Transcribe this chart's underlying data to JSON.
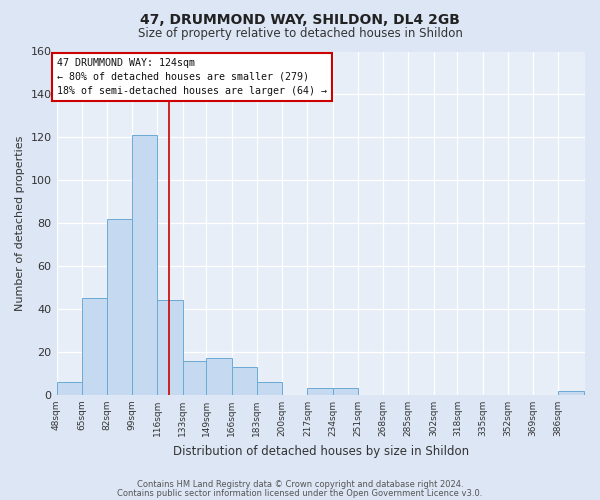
{
  "title": "47, DRUMMOND WAY, SHILDON, DL4 2GB",
  "subtitle": "Size of property relative to detached houses in Shildon",
  "xlabel": "Distribution of detached houses by size in Shildon",
  "ylabel": "Number of detached properties",
  "bar_color": "#c5d9f0",
  "bar_edge_color": "#6aaad4",
  "background_color": "#dce6f4",
  "plot_bg_color": "#e8eef8",
  "grid_color": "#ffffff",
  "annotation_box_color": "#ffffff",
  "annotation_box_edge": "#cc0000",
  "vline_color": "#cc0000",
  "vline_x": 124,
  "annotation_line1": "47 DRUMMOND WAY: 124sqm",
  "annotation_line2": "← 80% of detached houses are smaller (279)",
  "annotation_line3": "18% of semi-detached houses are larger (64) →",
  "footer_line1": "Contains HM Land Registry data © Crown copyright and database right 2024.",
  "footer_line2": "Contains public sector information licensed under the Open Government Licence v3.0.",
  "bins": [
    48,
    65,
    82,
    99,
    116,
    133,
    149,
    166,
    183,
    200,
    217,
    234,
    251,
    268,
    285,
    302,
    318,
    335,
    352,
    369,
    386
  ],
  "bin_width": 17,
  "counts": [
    6,
    45,
    82,
    121,
    44,
    16,
    17,
    13,
    6,
    0,
    3,
    3,
    0,
    0,
    0,
    0,
    0,
    0,
    0,
    0,
    2
  ],
  "ylim": [
    0,
    160
  ],
  "yticks": [
    0,
    20,
    40,
    60,
    80,
    100,
    120,
    140,
    160
  ],
  "tick_labels": [
    "48sqm",
    "65sqm",
    "82sqm",
    "99sqm",
    "116sqm",
    "133sqm",
    "149sqm",
    "166sqm",
    "183sqm",
    "200sqm",
    "217sqm",
    "234sqm",
    "251sqm",
    "268sqm",
    "285sqm",
    "302sqm",
    "318sqm",
    "335sqm",
    "352sqm",
    "369sqm",
    "386sqm"
  ]
}
